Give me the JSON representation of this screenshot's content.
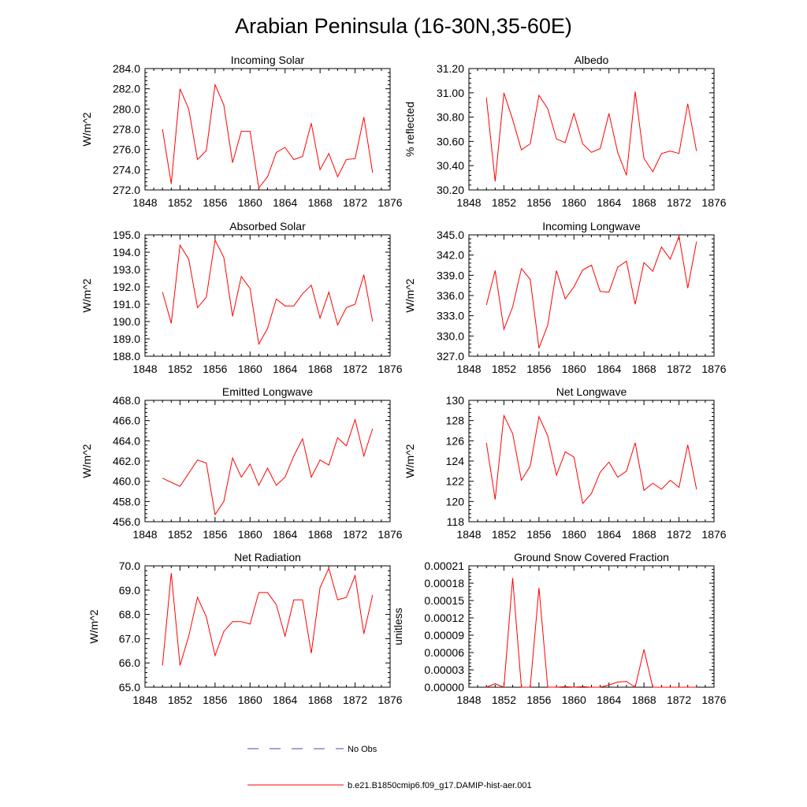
{
  "figure": {
    "title": "Arabian Peninsula (16-30N,35-60E)",
    "series_color": "#ff0000",
    "no_obs_color": "#4444cc"
  },
  "legend": {
    "no_obs_label": "No Obs",
    "model_label": "b.e21.B1850cmip6.f09_g17.DAMIP-hist-aer.001"
  },
  "chart_data": [
    {
      "type": "line",
      "title": "Incoming Solar",
      "ylabel": "W/m^2",
      "xlim": [
        1848,
        1876
      ],
      "xticks": [
        "1848",
        "1852",
        "1856",
        "1860",
        "1864",
        "1868",
        "1872",
        "1876"
      ],
      "ylim": [
        272.0,
        284.0
      ],
      "yticks": [
        "272.0",
        "274.0",
        "276.0",
        "278.0",
        "280.0",
        "282.0",
        "284.0"
      ],
      "x": [
        1850,
        1851,
        1852,
        1853,
        1854,
        1855,
        1856,
        1857,
        1858,
        1859,
        1860,
        1861,
        1862,
        1863,
        1864,
        1865,
        1866,
        1867,
        1868,
        1869,
        1870,
        1871,
        1872,
        1873,
        1874
      ],
      "series": [
        {
          "values": [
            278.0,
            272.6,
            282.0,
            280.0,
            275.0,
            275.9,
            282.4,
            280.4,
            274.7,
            277.8,
            277.8,
            272.2,
            273.3,
            275.7,
            276.2,
            275.0,
            275.3,
            278.6,
            274.0,
            275.6,
            273.3,
            275.0,
            275.1,
            279.2,
            273.7
          ]
        }
      ]
    },
    {
      "type": "line",
      "title": "Albedo",
      "ylabel": "% reflected",
      "xlim": [
        1848,
        1876
      ],
      "xticks": [
        "1848",
        "1852",
        "1856",
        "1860",
        "1864",
        "1868",
        "1872",
        "1876"
      ],
      "ylim": [
        30.2,
        31.2
      ],
      "yticks": [
        "30.20",
        "30.40",
        "30.60",
        "30.80",
        "31.00",
        "31.20"
      ],
      "x": [
        1850,
        1851,
        1852,
        1853,
        1854,
        1855,
        1856,
        1857,
        1858,
        1859,
        1860,
        1861,
        1862,
        1863,
        1864,
        1865,
        1866,
        1867,
        1868,
        1869,
        1870,
        1871,
        1872,
        1873,
        1874
      ],
      "series": [
        {
          "values": [
            30.96,
            30.27,
            31.0,
            30.78,
            30.53,
            30.58,
            30.98,
            30.87,
            30.62,
            30.59,
            30.83,
            30.58,
            30.51,
            30.54,
            30.83,
            30.51,
            30.32,
            31.01,
            30.46,
            30.35,
            30.5,
            30.52,
            30.5,
            30.91,
            30.52
          ]
        }
      ]
    },
    {
      "type": "line",
      "title": "Absorbed Solar",
      "ylabel": "W/m^2",
      "xlim": [
        1848,
        1876
      ],
      "xticks": [
        "1848",
        "1852",
        "1856",
        "1860",
        "1864",
        "1868",
        "1872",
        "1876"
      ],
      "ylim": [
        188.0,
        195.0
      ],
      "yticks": [
        "188.0",
        "189.0",
        "190.0",
        "191.0",
        "192.0",
        "193.0",
        "194.0",
        "195.0"
      ],
      "x": [
        1850,
        1851,
        1852,
        1853,
        1854,
        1855,
        1856,
        1857,
        1858,
        1859,
        1860,
        1861,
        1862,
        1863,
        1864,
        1865,
        1866,
        1867,
        1868,
        1869,
        1870,
        1871,
        1872,
        1873,
        1874
      ],
      "series": [
        {
          "values": [
            191.7,
            189.9,
            194.4,
            193.6,
            190.8,
            191.4,
            194.7,
            193.7,
            190.3,
            192.6,
            191.9,
            188.7,
            189.6,
            191.3,
            190.9,
            190.9,
            191.6,
            192.1,
            190.2,
            191.7,
            189.8,
            190.8,
            191.0,
            192.7,
            190.0
          ]
        }
      ]
    },
    {
      "type": "line",
      "title": "Incoming Longwave",
      "ylabel": "W/m^2",
      "xlim": [
        1848,
        1876
      ],
      "xticks": [
        "1848",
        "1852",
        "1856",
        "1860",
        "1864",
        "1868",
        "1872",
        "1876"
      ],
      "ylim": [
        327.0,
        345.0
      ],
      "yticks": [
        "327.0",
        "330.0",
        "333.0",
        "336.0",
        "339.0",
        "342.0",
        "345.0"
      ],
      "x": [
        1850,
        1851,
        1852,
        1853,
        1854,
        1855,
        1856,
        1857,
        1858,
        1859,
        1860,
        1861,
        1862,
        1863,
        1864,
        1865,
        1866,
        1867,
        1868,
        1869,
        1870,
        1871,
        1872,
        1873,
        1874
      ],
      "series": [
        {
          "values": [
            334.6,
            339.7,
            331.0,
            334.3,
            340.0,
            338.4,
            328.2,
            331.6,
            339.7,
            335.5,
            337.3,
            339.8,
            340.5,
            336.6,
            336.5,
            340.2,
            341.1,
            334.7,
            340.9,
            339.6,
            343.2,
            341.4,
            344.8,
            337.1,
            344.0
          ]
        }
      ]
    },
    {
      "type": "line",
      "title": "Emitted Longwave",
      "ylabel": "W/m^2",
      "xlim": [
        1848,
        1876
      ],
      "xticks": [
        "1848",
        "1852",
        "1856",
        "1860",
        "1864",
        "1868",
        "1872",
        "1876"
      ],
      "ylim": [
        456.0,
        468.0
      ],
      "yticks": [
        "456.0",
        "458.0",
        "460.0",
        "462.0",
        "464.0",
        "466.0",
        "468.0"
      ],
      "x": [
        1850,
        1852,
        1854,
        1855,
        1856,
        1857,
        1858,
        1859,
        1860,
        1861,
        1862,
        1863,
        1864,
        1865,
        1866,
        1867,
        1868,
        1869,
        1870,
        1871,
        1872,
        1873,
        1874
      ],
      "series": [
        {
          "values": [
            460.3,
            459.5,
            462.1,
            461.8,
            456.7,
            458.0,
            462.3,
            460.4,
            461.7,
            459.6,
            461.3,
            459.6,
            460.4,
            462.5,
            464.2,
            460.4,
            462.1,
            461.6,
            464.3,
            463.5,
            466.1,
            462.5,
            465.2
          ]
        }
      ]
    },
    {
      "type": "line",
      "title": "Net Longwave",
      "ylabel": "W/m^2",
      "xlim": [
        1848,
        1876
      ],
      "xticks": [
        "1848",
        "1852",
        "1856",
        "1860",
        "1864",
        "1868",
        "1872",
        "1876"
      ],
      "ylim": [
        118,
        130
      ],
      "yticks": [
        "118",
        "120",
        "122",
        "124",
        "126",
        "128",
        "130"
      ],
      "x": [
        1850,
        1851,
        1852,
        1853,
        1854,
        1855,
        1856,
        1857,
        1858,
        1859,
        1860,
        1861,
        1862,
        1863,
        1864,
        1865,
        1866,
        1867,
        1868,
        1869,
        1870,
        1871,
        1872,
        1873,
        1874
      ],
      "series": [
        {
          "values": [
            125.8,
            120.2,
            128.5,
            126.7,
            122.1,
            123.5,
            128.4,
            126.5,
            122.6,
            124.9,
            124.4,
            119.8,
            120.8,
            122.9,
            123.9,
            122.4,
            123.0,
            125.8,
            121.1,
            121.8,
            121.2,
            122.1,
            121.4,
            125.6,
            121.2
          ]
        }
      ]
    },
    {
      "type": "line",
      "title": "Net Radiation",
      "ylabel": "W/m^2",
      "xlim": [
        1848,
        1876
      ],
      "xticks": [
        "1848",
        "1852",
        "1856",
        "1860",
        "1864",
        "1868",
        "1872",
        "1876"
      ],
      "ylim": [
        65.0,
        70.0
      ],
      "yticks": [
        "65.0",
        "66.0",
        "67.0",
        "68.0",
        "69.0",
        "70.0"
      ],
      "x": [
        1850,
        1851,
        1852,
        1853,
        1854,
        1855,
        1856,
        1857,
        1858,
        1859,
        1860,
        1861,
        1862,
        1863,
        1864,
        1865,
        1866,
        1867,
        1868,
        1869,
        1870,
        1871,
        1872,
        1873,
        1874
      ],
      "series": [
        {
          "values": [
            65.9,
            69.7,
            65.9,
            67.1,
            68.7,
            67.9,
            66.3,
            67.3,
            67.7,
            67.7,
            67.6,
            68.9,
            68.9,
            68.4,
            67.1,
            68.6,
            68.6,
            66.4,
            69.1,
            69.9,
            68.6,
            68.7,
            69.6,
            67.2,
            68.8
          ]
        }
      ]
    },
    {
      "type": "line",
      "title": "Ground Snow Covered Fraction",
      "ylabel": "unitless",
      "xlim": [
        1848,
        1876
      ],
      "xticks": [
        "1848",
        "1852",
        "1856",
        "1860",
        "1864",
        "1868",
        "1872",
        "1876"
      ],
      "ylim": [
        0.0,
        0.00021
      ],
      "yticks": [
        "0.00000",
        "0.00003",
        "0.00006",
        "0.00009",
        "0.00012",
        "0.00015",
        "0.00018",
        "0.00021"
      ],
      "x": [
        1850,
        1851,
        1852,
        1853,
        1854,
        1855,
        1856,
        1857,
        1858,
        1859,
        1860,
        1861,
        1862,
        1863,
        1864,
        1865,
        1866,
        1867,
        1868,
        1869,
        1870,
        1871,
        1872,
        1873,
        1874
      ],
      "series": [
        {
          "values": [
            0.0,
            6e-06,
            0.0,
            0.000189,
            0.0,
            0.0,
            0.000172,
            0.0,
            0.0,
            1e-06,
            0.0,
            1e-06,
            0.0,
            0.0,
            4e-06,
            9e-06,
            1e-05,
            0.0,
            6.5e-05,
            0.0,
            0.0,
            0.0,
            0.0,
            0.0,
            0.0
          ]
        }
      ]
    }
  ]
}
